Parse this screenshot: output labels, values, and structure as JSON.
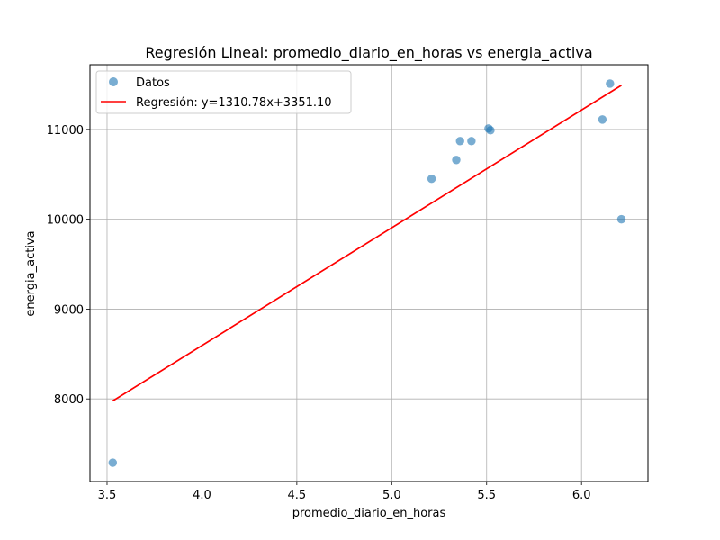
{
  "chart_data": {
    "type": "scatter",
    "title": "Regresión Lineal: promedio_diario_en_horas vs energia_activa",
    "xlabel": "promedio_diario_en_horas",
    "ylabel": "energia_activa",
    "xlim": [
      3.41,
      6.35
    ],
    "ylim": [
      7080,
      11720
    ],
    "xticks": [
      3.5,
      4.0,
      4.5,
      5.0,
      5.5,
      6.0
    ],
    "xtick_labels": [
      "3.5",
      "4.0",
      "4.5",
      "5.0",
      "5.5",
      "6.0"
    ],
    "yticks": [
      8000,
      9000,
      10000,
      11000
    ],
    "ytick_labels": [
      "8000",
      "9000",
      "10000",
      "11000"
    ],
    "grid": true,
    "legend_position": "top-left",
    "series": [
      {
        "name": "Datos",
        "kind": "scatter",
        "color": "#1f77b4",
        "x": [
          3.53,
          5.21,
          5.34,
          5.36,
          5.42,
          5.51,
          5.52,
          6.11,
          6.15,
          6.21
        ],
        "y": [
          7290,
          10450,
          10660,
          10870,
          10870,
          11010,
          10990,
          11110,
          11510,
          10000
        ]
      },
      {
        "name": "Regresión: y=1310.78x+3351.10",
        "kind": "line",
        "color": "#ff0000",
        "slope": 1310.78,
        "intercept": 3351.1,
        "x_range": [
          3.53,
          6.21
        ]
      }
    ]
  }
}
